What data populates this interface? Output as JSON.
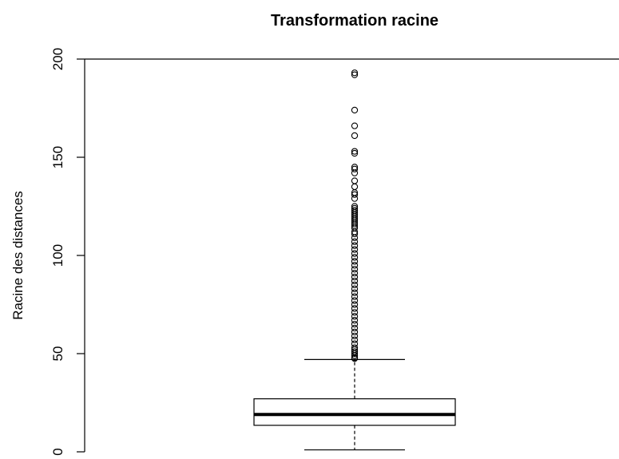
{
  "chart_data": {
    "type": "boxplot",
    "title": "Transformation racine",
    "xlabel": "",
    "ylabel": "Racine des distances",
    "ylim": [
      0,
      200
    ],
    "yticks": [
      0,
      50,
      100,
      150,
      200
    ],
    "box": {
      "min": 1,
      "q1": 13.5,
      "median": 19,
      "q3": 27,
      "whisker_high": 47
    },
    "outliers": [
      47.5,
      48,
      49,
      50,
      51,
      52,
      53,
      55,
      57,
      59,
      61,
      63,
      65,
      67,
      69,
      71,
      73,
      75,
      77,
      79,
      81,
      83,
      85,
      87,
      89,
      91,
      93,
      95,
      97,
      99,
      101,
      103,
      105,
      107,
      109,
      111,
      112,
      114,
      115,
      116,
      117,
      118,
      119,
      120,
      121,
      122,
      123,
      124,
      125,
      129,
      131,
      132,
      135,
      138,
      142,
      144,
      145,
      152,
      153,
      161,
      166,
      174,
      192,
      193
    ],
    "grid": false
  }
}
